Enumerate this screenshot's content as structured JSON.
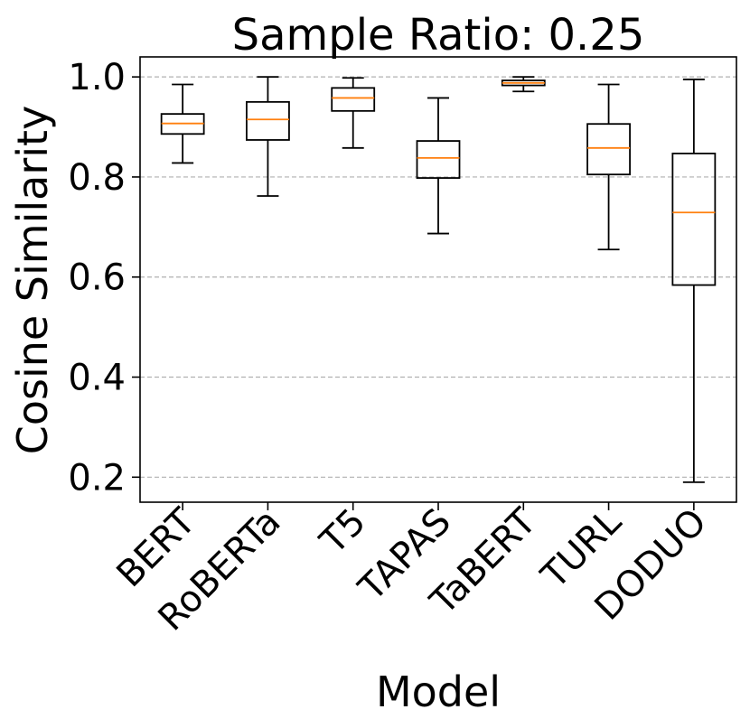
{
  "chart_data": {
    "type": "box",
    "title": "Sample Ratio: 0.25",
    "xlabel": "Model",
    "ylabel": "Cosine Similarity",
    "ylim": [
      0.15,
      1.04
    ],
    "yticks": [
      0.2,
      0.4,
      0.6,
      0.8,
      1.0
    ],
    "ytick_labels": [
      "0.2",
      "0.4",
      "0.6",
      "0.8",
      "1.0"
    ],
    "grid": "y-dashed",
    "categories": [
      "BERT",
      "RoBERTa",
      "T5",
      "TAPAS",
      "TaBERT",
      "TURL",
      "DODUO"
    ],
    "boxes": [
      {
        "whislo": 0.828,
        "q1": 0.886,
        "med": 0.907,
        "q3": 0.926,
        "whishi": 0.985
      },
      {
        "whislo": 0.762,
        "q1": 0.874,
        "med": 0.915,
        "q3": 0.95,
        "whishi": 1.0
      },
      {
        "whislo": 0.858,
        "q1": 0.932,
        "med": 0.958,
        "q3": 0.978,
        "whishi": 0.998
      },
      {
        "whislo": 0.687,
        "q1": 0.798,
        "med": 0.838,
        "q3": 0.872,
        "whishi": 0.958
      },
      {
        "whislo": 0.971,
        "q1": 0.983,
        "med": 0.988,
        "q3": 0.993,
        "whishi": 1.0
      },
      {
        "whislo": 0.655,
        "q1": 0.805,
        "med": 0.858,
        "q3": 0.906,
        "whishi": 0.985
      },
      {
        "whislo": 0.19,
        "q1": 0.584,
        "med": 0.729,
        "q3": 0.847,
        "whishi": 0.995
      }
    ],
    "colors": {
      "box": "#000000",
      "median": "#ff7f0e",
      "grid": "#b0b0b0"
    }
  }
}
